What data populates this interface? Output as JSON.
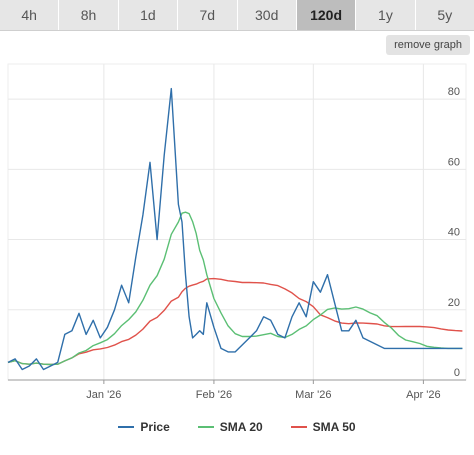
{
  "tabs": [
    {
      "label": "4h",
      "active": false
    },
    {
      "label": "8h",
      "active": false
    },
    {
      "label": "1d",
      "active": false
    },
    {
      "label": "7d",
      "active": false
    },
    {
      "label": "30d",
      "active": false
    },
    {
      "label": "120d",
      "active": true
    },
    {
      "label": "1y",
      "active": false
    },
    {
      "label": "5y",
      "active": false
    }
  ],
  "remove_graph_label": "remove graph",
  "colors": {
    "price": "#2f6faa",
    "sma20": "#5bbf74",
    "sma50": "#e0524b"
  },
  "chart_data": {
    "type": "line",
    "x_start_date": "2025-12-05",
    "x_end_date": "2026-04-13",
    "xticks": [
      {
        "label": "Jan '26",
        "date": "2026-01-01"
      },
      {
        "label": "Feb '26",
        "date": "2026-02-01"
      },
      {
        "label": "Mar '26",
        "date": "2026-03-01"
      },
      {
        "label": "Apr '26",
        "date": "2026-04-01"
      }
    ],
    "yticks": [
      0,
      20,
      40,
      60,
      80
    ],
    "ylim": [
      0,
      90
    ],
    "grid": true,
    "legend_position": "bottom",
    "series": [
      {
        "name": "Price",
        "key": "price",
        "x": [
          "2025-12-05",
          "2025-12-07",
          "2025-12-09",
          "2025-12-11",
          "2025-12-13",
          "2025-12-15",
          "2025-12-17",
          "2025-12-19",
          "2025-12-21",
          "2025-12-23",
          "2025-12-25",
          "2025-12-27",
          "2025-12-29",
          "2025-12-31",
          "2026-01-02",
          "2026-01-04",
          "2026-01-06",
          "2026-01-08",
          "2026-01-10",
          "2026-01-12",
          "2026-01-14",
          "2026-01-16",
          "2026-01-18",
          "2026-01-20",
          "2026-01-22",
          "2026-01-23",
          "2026-01-24",
          "2026-01-25",
          "2026-01-26",
          "2026-01-27",
          "2026-01-28",
          "2026-01-29",
          "2026-01-30",
          "2026-02-01",
          "2026-02-03",
          "2026-02-05",
          "2026-02-07",
          "2026-02-09",
          "2026-02-11",
          "2026-02-13",
          "2026-02-15",
          "2026-02-17",
          "2026-02-19",
          "2026-02-21",
          "2026-02-23",
          "2026-02-25",
          "2026-02-27",
          "2026-03-01",
          "2026-03-03",
          "2026-03-05",
          "2026-03-07",
          "2026-03-09",
          "2026-03-11",
          "2026-03-13",
          "2026-03-15",
          "2026-03-17",
          "2026-03-19",
          "2026-03-21",
          "2026-03-23",
          "2026-03-25",
          "2026-03-27",
          "2026-03-29",
          "2026-03-31",
          "2026-04-02",
          "2026-04-04",
          "2026-04-06",
          "2026-04-08",
          "2026-04-10",
          "2026-04-12"
        ],
        "values": [
          5,
          6,
          3,
          4,
          6,
          3,
          4,
          5,
          13,
          14,
          19,
          13,
          17,
          12,
          15,
          20,
          27,
          22,
          35,
          47,
          62,
          40,
          64,
          83,
          50,
          45,
          30,
          18,
          12,
          13,
          14,
          13,
          22,
          15,
          9,
          8,
          8,
          10,
          12,
          14,
          18,
          17,
          13,
          12,
          18,
          22,
          18,
          28,
          25,
          30,
          22,
          14,
          14,
          17,
          12,
          11,
          10,
          9,
          9,
          9,
          9,
          9,
          9,
          9,
          9,
          9,
          9,
          9,
          9
        ]
      }
    ]
  }
}
